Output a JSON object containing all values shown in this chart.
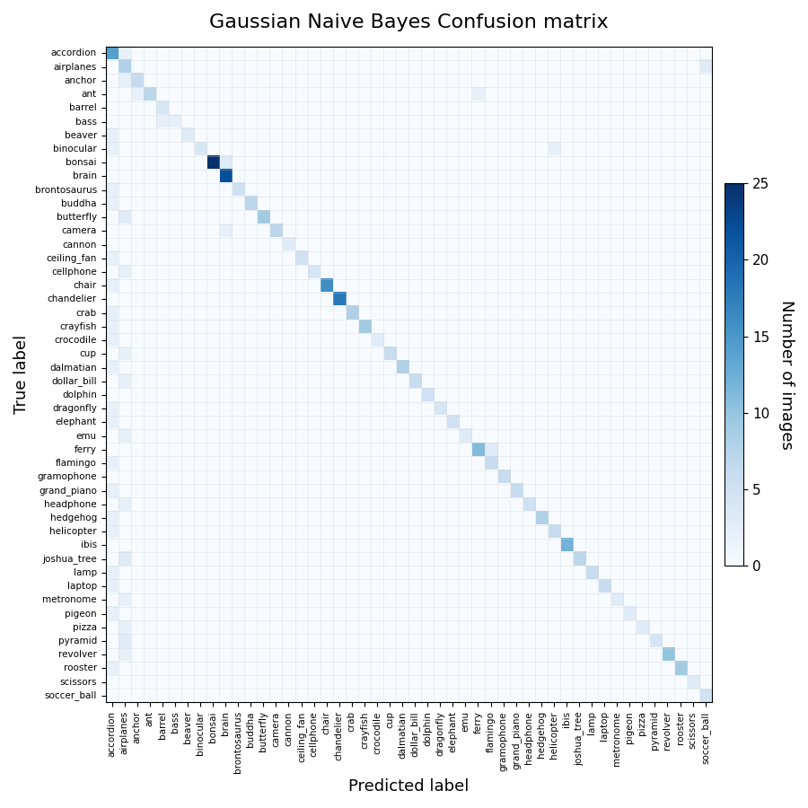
{
  "title": "Gaussian Naive Bayes Confusion matrix",
  "xlabel": "Predicted label",
  "ylabel": "True label",
  "colorbar_label": "Number of images",
  "vmin": 0,
  "vmax": 25,
  "classes": [
    "accordion",
    "airplanes",
    "anchor",
    "ant",
    "barrel",
    "bass",
    "beaver",
    "binocular",
    "bonsai",
    "brain",
    "brontosaurus",
    "buddha",
    "butterfly",
    "camera",
    "cannon",
    "ceiling_fan",
    "cellphone",
    "chair",
    "chandelier",
    "crab",
    "crayfish",
    "crocodile",
    "cup",
    "dalmatian",
    "dollar_bill",
    "dolphin",
    "dragonfly",
    "elephant",
    "emu",
    "ferry",
    "flamingo",
    "gramophone",
    "grand_piano",
    "headphone",
    "hedgehog",
    "helicopter",
    "ibis",
    "joshua_tree",
    "lamp",
    "laptop",
    "metronome",
    "pigeon",
    "pizza",
    "pyramid",
    "revolver",
    "rooster",
    "scissors",
    "soccer_ball"
  ],
  "diagonal": [
    14,
    8,
    6,
    7,
    4,
    2,
    3,
    4,
    25,
    22,
    5,
    7,
    9,
    7,
    3,
    5,
    4,
    16,
    18,
    8,
    9,
    3,
    6,
    8,
    6,
    5,
    4,
    5,
    3,
    11,
    6,
    6,
    6,
    5,
    8,
    6,
    12,
    7,
    6,
    6,
    3,
    3,
    3,
    4,
    10,
    9,
    3,
    5
  ],
  "notable_off_diagonal": [
    [
      0,
      1,
      2
    ],
    [
      1,
      47,
      3
    ],
    [
      2,
      1,
      2
    ],
    [
      3,
      2,
      2
    ],
    [
      5,
      4,
      2
    ],
    [
      6,
      0,
      2
    ],
    [
      7,
      0,
      2
    ],
    [
      8,
      9,
      3
    ],
    [
      10,
      0,
      2
    ],
    [
      11,
      0,
      2
    ],
    [
      12,
      1,
      3
    ],
    [
      13,
      9,
      2
    ],
    [
      15,
      0,
      2
    ],
    [
      16,
      1,
      2
    ],
    [
      17,
      0,
      2
    ],
    [
      19,
      0,
      2
    ],
    [
      20,
      0,
      2
    ],
    [
      21,
      0,
      2
    ],
    [
      22,
      1,
      2
    ],
    [
      23,
      0,
      2
    ],
    [
      24,
      1,
      2
    ],
    [
      26,
      0,
      2
    ],
    [
      27,
      0,
      2
    ],
    [
      28,
      1,
      2
    ],
    [
      29,
      30,
      3
    ],
    [
      30,
      0,
      2
    ],
    [
      32,
      0,
      2
    ],
    [
      33,
      1,
      2
    ],
    [
      34,
      0,
      2
    ],
    [
      35,
      0,
      2
    ],
    [
      37,
      1,
      3
    ],
    [
      38,
      0,
      2
    ],
    [
      39,
      0,
      2
    ],
    [
      40,
      1,
      2
    ],
    [
      41,
      0,
      2
    ],
    [
      42,
      1,
      2
    ],
    [
      43,
      1,
      3
    ],
    [
      44,
      1,
      2
    ],
    [
      45,
      0,
      2
    ],
    [
      3,
      29,
      2
    ],
    [
      7,
      35,
      2
    ]
  ],
  "figsize": [
    9.0,
    9.0
  ],
  "dpi": 100,
  "title_fontsize": 16,
  "label_fontsize": 13,
  "tick_fontsize": 7.5,
  "colorbar_tick_fontsize": 11
}
